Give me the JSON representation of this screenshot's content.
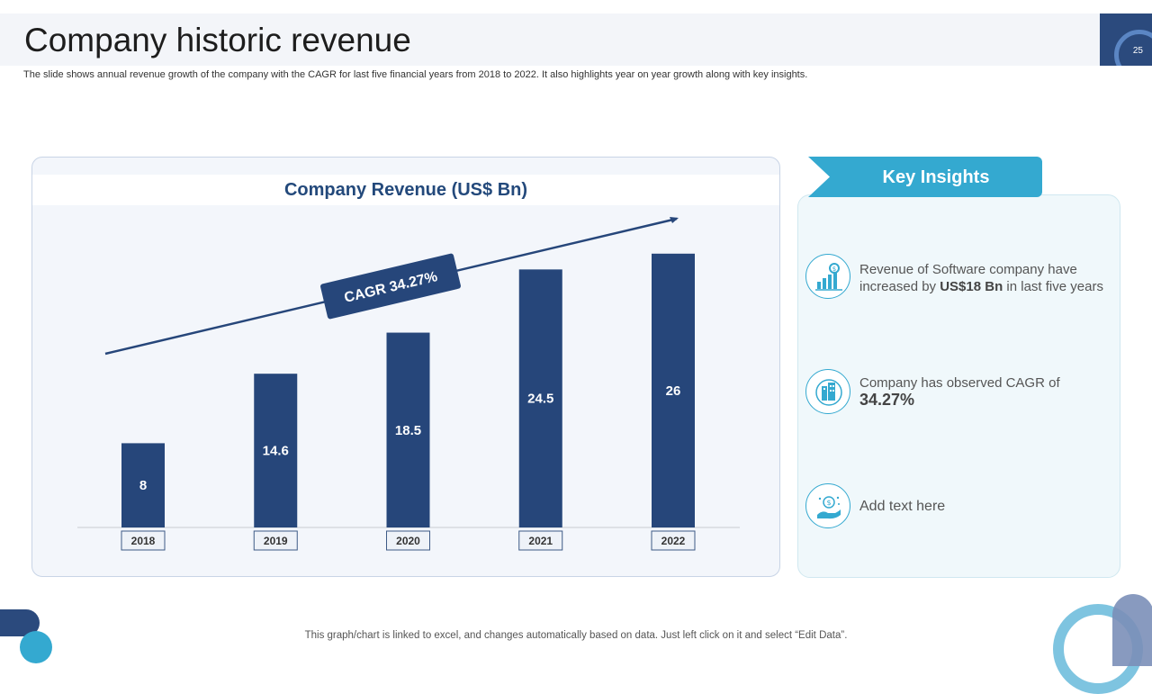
{
  "header": {
    "title": "Company historic revenue",
    "subtitle": "The slide shows annual revenue growth of the company with the CAGR for last five financial years from 2018 to 2022. It also highlights year on year growth along with key insights.",
    "page_number": "25"
  },
  "chart_data": {
    "type": "bar",
    "title": "Company Revenue (US$ Bn)",
    "categories": [
      "2018",
      "2019",
      "2020",
      "2021",
      "2022"
    ],
    "values": [
      8,
      14.6,
      18.5,
      24.5,
      26
    ],
    "xlabel": "",
    "ylabel": "",
    "ylim": [
      0,
      30
    ],
    "annotation": "CAGR 34.27%",
    "bar_color": "#26467a",
    "trend_color": "#26467a"
  },
  "insights": {
    "title": "Key Insights",
    "items": [
      {
        "icon": "revenue-growth-icon",
        "text_before": "Revenue of Software company have increased by ",
        "highlight": "US$18 Bn",
        "text_after": " in last five years"
      },
      {
        "icon": "global-company-icon",
        "text_before": "Company has observed CAGR of ",
        "highlight": "34.27%",
        "text_after": ""
      },
      {
        "icon": "money-hand-icon",
        "text_before": "Add text here",
        "highlight": "",
        "text_after": ""
      }
    ]
  },
  "footer": {
    "note": "This graph/chart is linked to excel,  and changes automatically based on data. Just left click on it and select “Edit Data”."
  },
  "colors": {
    "accent": "#34a9d0",
    "brand": "#26467a"
  }
}
